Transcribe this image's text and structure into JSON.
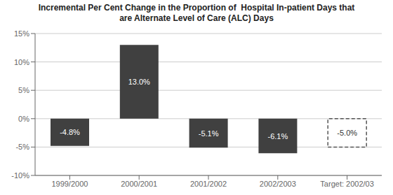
{
  "chart_data": {
    "type": "bar",
    "title": "Incremental Per Cent Change in the Proportion of  Hospital In-patient Days that\nare Alternate Level of Care (ALC) Days",
    "categories": [
      "1999/2000",
      "2000/2001",
      "2001/2002",
      "2002/2003",
      "Target: 2002/03"
    ],
    "values": [
      -4.8,
      13.0,
      -5.1,
      -6.1,
      -5.0
    ],
    "value_labels": [
      "-4.8%",
      "13.0%",
      "-5.1%",
      "-6.1%",
      "-5.0%"
    ],
    "data_labels": true,
    "colors": [
      "#404040",
      "#404040",
      "#404040",
      "#404040",
      "none"
    ],
    "ylim": [
      -10,
      15
    ],
    "yticks": [
      {
        "value": -10,
        "label": "-10%"
      },
      {
        "value": -5,
        "label": "-5%"
      },
      {
        "value": 0,
        "label": "0%"
      },
      {
        "value": 5,
        "label": "5%"
      },
      {
        "value": 10,
        "label": "10%"
      },
      {
        "value": 15,
        "label": "15%"
      }
    ],
    "grid": true
  }
}
